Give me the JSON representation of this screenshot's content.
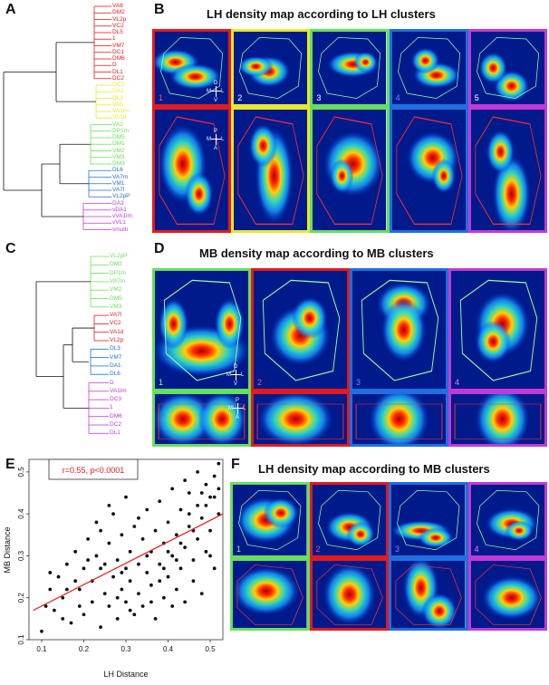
{
  "labels": {
    "A": "A",
    "B": "B",
    "C": "C",
    "D": "D",
    "E": "E",
    "F": "F"
  },
  "titles": {
    "B": "LH density map according to LH clusters",
    "D": "MB density map according to MB clusters",
    "F": "LH density map according to MB clusters"
  },
  "colors": {
    "red": "#e41a1c",
    "yellow": "#e8e82a",
    "green": "#66e05a",
    "blue": "#1f6fe0",
    "purple": "#c23ad6"
  },
  "dendroA": {
    "groups": [
      {
        "color": "red",
        "leaves": [
          "VA6",
          "DM2",
          "VL2p",
          "VC2",
          "DL5",
          "1",
          "VM7",
          "DC1",
          "DM6",
          "D",
          "DL1",
          "DC2"
        ]
      },
      {
        "color": "yellow",
        "leaves": [
          "DC3",
          "DA1",
          "DL3",
          "VA5",
          "VA1lm",
          "VA1d"
        ]
      },
      {
        "color": "green",
        "leaves": [
          "VA2",
          "DP1m",
          "DM5",
          "DM1",
          "VM2",
          "VM3",
          "DM3"
        ]
      },
      {
        "color": "blue",
        "leaves": [
          "DL6",
          "VA7m",
          "VM1",
          "VA7l",
          "VL2pP"
        ]
      },
      {
        "color": "purple",
        "leaves": [
          "DA3",
          "vDA1",
          "vVA1lm",
          "vVL1",
          "vmulti"
        ]
      }
    ]
  },
  "dendroC": {
    "groups": [
      {
        "color": "green",
        "leaves": [
          "VL2pP",
          "DM2",
          "DP1m",
          "VA7m",
          "VM2",
          "DM5",
          "VM3"
        ]
      },
      {
        "color": "red",
        "leaves": [
          "VA7l",
          "VC2",
          "VA1d",
          "VL2p"
        ]
      },
      {
        "color": "blue",
        "leaves": [
          "DL3",
          "VM7",
          "DA1",
          "DL6"
        ]
      },
      {
        "color": "purple",
        "leaves": [
          "D",
          "VA1lm",
          "DC3",
          "1",
          "DM6",
          "DC2",
          "DL1"
        ]
      }
    ]
  },
  "tileNumbers": {
    "B": [
      "1",
      "2",
      "3",
      "4",
      "5"
    ],
    "D": [
      "1",
      "2",
      "3",
      "4"
    ],
    "F": [
      "1",
      "2",
      "3",
      "4"
    ]
  },
  "orientTop": {
    "up": "D",
    "left": "M",
    "right": "L",
    "down": "V"
  },
  "orientBottom": {
    "up": "P",
    "left": "M",
    "right": "L",
    "down": "A"
  },
  "chart_data": {
    "type": "scatter",
    "title": "",
    "xlabel": "LH Distance",
    "ylabel": "MB Distance",
    "xlim": [
      0.07,
      0.53
    ],
    "ylim": [
      0.1,
      0.53
    ],
    "xticks": [
      "0.1",
      "0.2",
      "0.3",
      "0.4",
      "0.5"
    ],
    "yticks": [
      "0.1",
      "0.2",
      "0.3",
      "0.4",
      "0.5"
    ],
    "annotation": "r=0.55, p<0.0001",
    "fit_line": {
      "x": [
        0.08,
        0.53
      ],
      "y": [
        0.17,
        0.4
      ]
    },
    "points": [
      [
        0.1,
        0.12
      ],
      [
        0.11,
        0.18
      ],
      [
        0.12,
        0.22
      ],
      [
        0.13,
        0.17
      ],
      [
        0.14,
        0.25
      ],
      [
        0.15,
        0.2
      ],
      [
        0.16,
        0.28
      ],
      [
        0.17,
        0.14
      ],
      [
        0.18,
        0.31
      ],
      [
        0.19,
        0.22
      ],
      [
        0.2,
        0.16
      ],
      [
        0.2,
        0.27
      ],
      [
        0.21,
        0.34
      ],
      [
        0.22,
        0.19
      ],
      [
        0.22,
        0.24
      ],
      [
        0.23,
        0.3
      ],
      [
        0.24,
        0.13
      ],
      [
        0.24,
        0.36
      ],
      [
        0.25,
        0.21
      ],
      [
        0.25,
        0.28
      ],
      [
        0.26,
        0.18
      ],
      [
        0.26,
        0.33
      ],
      [
        0.27,
        0.25
      ],
      [
        0.27,
        0.4
      ],
      [
        0.28,
        0.15
      ],
      [
        0.28,
        0.29
      ],
      [
        0.29,
        0.22
      ],
      [
        0.29,
        0.35
      ],
      [
        0.3,
        0.19
      ],
      [
        0.3,
        0.27
      ],
      [
        0.3,
        0.44
      ],
      [
        0.31,
        0.24
      ],
      [
        0.31,
        0.31
      ],
      [
        0.32,
        0.16
      ],
      [
        0.32,
        0.37
      ],
      [
        0.33,
        0.21
      ],
      [
        0.33,
        0.28
      ],
      [
        0.34,
        0.34
      ],
      [
        0.34,
        0.18
      ],
      [
        0.35,
        0.26
      ],
      [
        0.35,
        0.41
      ],
      [
        0.36,
        0.23
      ],
      [
        0.36,
        0.31
      ],
      [
        0.37,
        0.15
      ],
      [
        0.37,
        0.36
      ],
      [
        0.38,
        0.28
      ],
      [
        0.38,
        0.43
      ],
      [
        0.39,
        0.2
      ],
      [
        0.39,
        0.33
      ],
      [
        0.4,
        0.25
      ],
      [
        0.4,
        0.38
      ],
      [
        0.41,
        0.3
      ],
      [
        0.41,
        0.46
      ],
      [
        0.42,
        0.22
      ],
      [
        0.42,
        0.35
      ],
      [
        0.43,
        0.27
      ],
      [
        0.43,
        0.41
      ],
      [
        0.44,
        0.19
      ],
      [
        0.44,
        0.32
      ],
      [
        0.45,
        0.37
      ],
      [
        0.45,
        0.45
      ],
      [
        0.46,
        0.24
      ],
      [
        0.46,
        0.29
      ],
      [
        0.47,
        0.34
      ],
      [
        0.47,
        0.42
      ],
      [
        0.48,
        0.21
      ],
      [
        0.48,
        0.39
      ],
      [
        0.49,
        0.47
      ],
      [
        0.49,
        0.31
      ],
      [
        0.5,
        0.36
      ],
      [
        0.5,
        0.44
      ],
      [
        0.51,
        0.27
      ],
      [
        0.51,
        0.49
      ],
      [
        0.52,
        0.4
      ],
      [
        0.52,
        0.46
      ],
      [
        0.12,
        0.26
      ],
      [
        0.15,
        0.15
      ],
      [
        0.18,
        0.24
      ],
      [
        0.21,
        0.29
      ],
      [
        0.23,
        0.38
      ],
      [
        0.26,
        0.42
      ],
      [
        0.28,
        0.2
      ],
      [
        0.31,
        0.17
      ],
      [
        0.33,
        0.39
      ],
      [
        0.36,
        0.19
      ],
      [
        0.39,
        0.27
      ],
      [
        0.41,
        0.18
      ],
      [
        0.43,
        0.33
      ],
      [
        0.44,
        0.48
      ],
      [
        0.46,
        0.36
      ],
      [
        0.48,
        0.45
      ],
      [
        0.5,
        0.3
      ],
      [
        0.47,
        0.5
      ],
      [
        0.49,
        0.42
      ],
      [
        0.51,
        0.44
      ],
      [
        0.52,
        0.52
      ],
      [
        0.45,
        0.4
      ],
      [
        0.4,
        0.31
      ],
      [
        0.35,
        0.3
      ],
      [
        0.29,
        0.26
      ],
      [
        0.24,
        0.27
      ],
      [
        0.19,
        0.18
      ],
      [
        0.16,
        0.22
      ],
      [
        0.38,
        0.24
      ],
      [
        0.42,
        0.29
      ]
    ]
  }
}
